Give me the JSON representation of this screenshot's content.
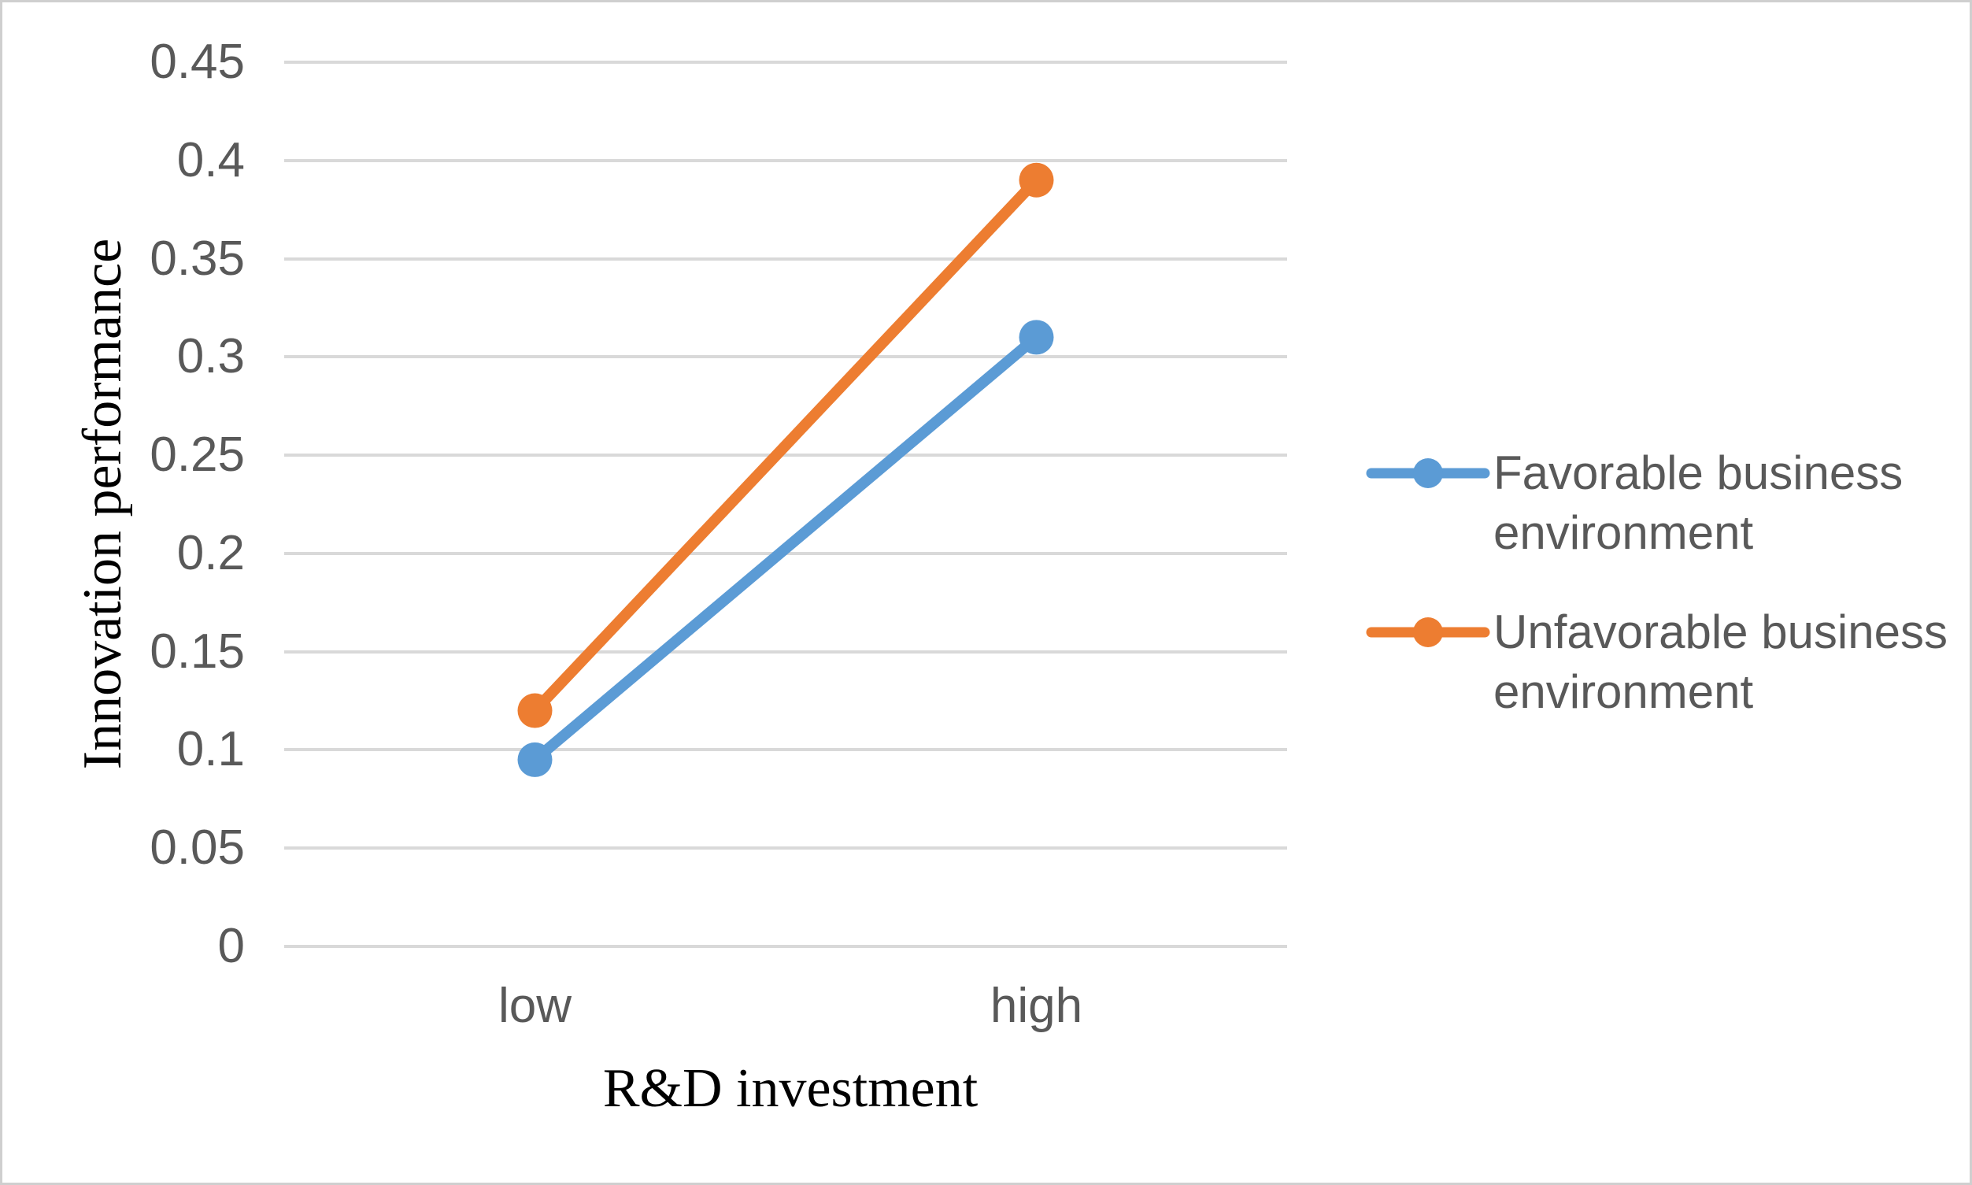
{
  "chart_data": {
    "type": "line",
    "title": "",
    "categories": [
      "low",
      "high"
    ],
    "series": [
      {
        "name": "Favorable business environment",
        "values": [
          0.095,
          0.31
        ],
        "color": "#5B9BD5"
      },
      {
        "name": "Unfavorable business environment",
        "values": [
          0.12,
          0.39
        ],
        "color": "#ED7D31"
      }
    ],
    "xlabel": "R&D investment",
    "ylabel": "Innovation performance",
    "ylim": [
      0,
      0.45
    ],
    "ytick_step": 0.05,
    "yticks": [
      "0",
      "0.05",
      "0.1",
      "0.15",
      "0.2",
      "0.25",
      "0.3",
      "0.35",
      "0.4",
      "0.45"
    ],
    "grid": true,
    "legend_position": "right",
    "gridline_color": "#D9D9D9",
    "tick_text_color": "#595959",
    "legend_text_color": "#595959",
    "axis_title_color": "#000000",
    "frame_border_color": "#CFCFCF"
  }
}
